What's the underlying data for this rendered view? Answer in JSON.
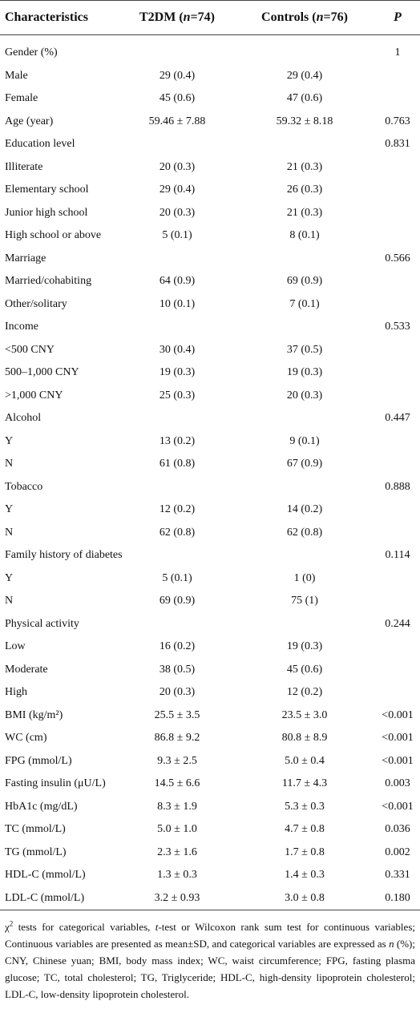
{
  "table": {
    "header": [
      [
        {
          "text": "Characteristics"
        }
      ],
      [
        {
          "text": "T2DM ("
        },
        {
          "text": "n",
          "italic": true
        },
        {
          "text": "=74)"
        }
      ],
      [
        {
          "text": "Controls ("
        },
        {
          "text": "n",
          "italic": true
        },
        {
          "text": "=76)"
        }
      ],
      [
        {
          "text": "P",
          "italic": true
        }
      ]
    ],
    "rows": [
      [
        "Gender (%)",
        null,
        null,
        "1"
      ],
      [
        "Male",
        "29 (0.4)",
        "29 (0.4)",
        null
      ],
      [
        "Female",
        "45 (0.6)",
        "47 (0.6)",
        null
      ],
      [
        "Age (year)",
        "59.46 ± 7.88",
        "59.32 ± 8.18",
        "0.763"
      ],
      [
        "Education level",
        null,
        null,
        "0.831"
      ],
      [
        "Illiterate",
        "20 (0.3)",
        "21 (0.3)",
        null
      ],
      [
        "Elementary school",
        "29 (0.4)",
        "26 (0.3)",
        null
      ],
      [
        "Junior high school",
        "20 (0.3)",
        "21 (0.3)",
        null
      ],
      [
        "High school or above",
        "5 (0.1)",
        "8 (0.1)",
        null
      ],
      [
        "Marriage",
        null,
        null,
        "0.566"
      ],
      [
        "Married/cohabiting",
        "64 (0.9)",
        "69 (0.9)",
        null
      ],
      [
        "Other/solitary",
        "10 (0.1)",
        "7 (0.1)",
        null
      ],
      [
        "Income",
        null,
        null,
        "0.533"
      ],
      [
        "<500 CNY",
        "30 (0.4)",
        "37 (0.5)",
        null
      ],
      [
        "500–1,000 CNY",
        "19 (0.3)",
        "19 (0.3)",
        null
      ],
      [
        ">1,000 CNY",
        "25 (0.3)",
        "20 (0.3)",
        null
      ],
      [
        "Alcohol",
        null,
        null,
        "0.447"
      ],
      [
        "Y",
        "13 (0.2)",
        "9 (0.1)",
        null
      ],
      [
        "N",
        "61 (0.8)",
        "67 (0.9)",
        null
      ],
      [
        "Tobacco",
        null,
        null,
        "0.888"
      ],
      [
        "Y",
        "12 (0.2)",
        "14 (0.2)",
        null
      ],
      [
        "N",
        "62 (0.8)",
        "62 (0.8)",
        null
      ],
      [
        "Family history of diabetes",
        null,
        null,
        "0.114"
      ],
      [
        "Y",
        "5 (0.1)",
        "1 (0)",
        null
      ],
      [
        "N",
        "69 (0.9)",
        "75 (1)",
        null
      ],
      [
        "Physical activity",
        null,
        null,
        "0.244"
      ],
      [
        "Low",
        "16 (0.2)",
        "19 (0.3)",
        null
      ],
      [
        "Moderate",
        "38 (0.5)",
        "45 (0.6)",
        null
      ],
      [
        "High",
        "20 (0.3)",
        "12 (0.2)",
        null
      ],
      [
        "BMI (kg/m²)",
        "25.5 ± 3.5",
        "23.5 ± 3.0",
        "<0.001"
      ],
      [
        "WC (cm)",
        "86.8 ± 9.2",
        "80.8 ± 8.9",
        "<0.001"
      ],
      [
        "FPG (mmol/L)",
        "9.3 ± 2.5",
        "5.0 ± 0.4",
        "<0.001"
      ],
      [
        "Fasting insulin (μU/L)",
        "14.5 ± 6.6",
        "11.7 ± 4.3",
        "0.003"
      ],
      [
        "HbA1c (mg/dL)",
        "8.3 ± 1.9",
        "5.3 ± 0.3",
        "<0.001"
      ],
      [
        "TC (mmol/L)",
        "5.0 ± 1.0",
        "4.7 ± 0.8",
        "0.036"
      ],
      [
        "TG (mmol/L)",
        "2.3 ± 1.6",
        "1.7 ± 0.8",
        "0.002"
      ],
      [
        "HDL-C (mmol/L)",
        "1.3 ± 0.3",
        "1.4 ± 0.3",
        "0.331"
      ],
      [
        "LDL-C (mmol/L)",
        "3.2 ± 0.93",
        "3.0 ± 0.8",
        "0.180"
      ]
    ]
  },
  "footnote": [
    {
      "text": "χ"
    },
    {
      "text": "2",
      "sup": true
    },
    {
      "text": " tests for categorical variables, "
    },
    {
      "text": "t",
      "italic": true
    },
    {
      "text": "-test or Wilcoxon rank sum test for continuous variables; Continuous variables are presented as mean±SD, and categorical variables are expressed as "
    },
    {
      "text": "n",
      "italic": true
    },
    {
      "text": " (%); CNY, Chinese yuan; BMI, body mass index; WC, waist circumference; FPG, fasting plasma glucose; TC, total cholesterol; TG, Triglyceride; HDL-C, high-density lipoprotein cholesterol; LDL-C, low-density lipoprotein cholesterol."
    }
  ]
}
